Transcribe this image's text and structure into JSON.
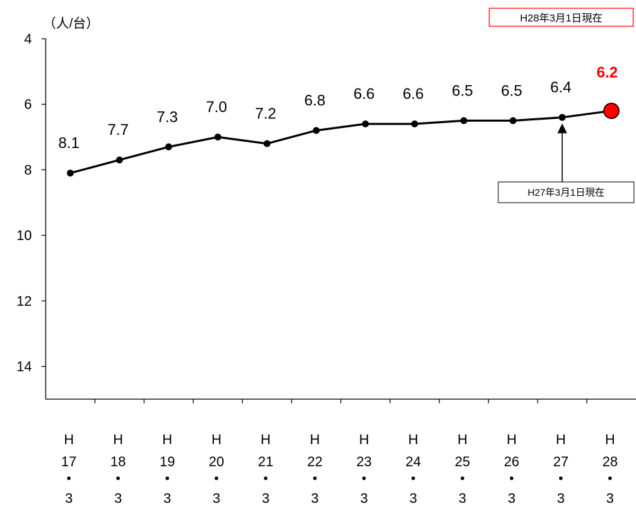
{
  "chart_data": {
    "type": "line",
    "unit_label": "（人/台）",
    "badge": "H28年3月1日現在",
    "callout": "H27年3月1日現在",
    "y_axis": {
      "min": 4,
      "max": 15,
      "inverted": true,
      "ticks": [
        4,
        6,
        8,
        10,
        12,
        14
      ]
    },
    "categories": [
      [
        "H",
        "17",
        "・",
        "3"
      ],
      [
        "H",
        "18",
        "・",
        "3"
      ],
      [
        "H",
        "19",
        "・",
        "3"
      ],
      [
        "H",
        "20",
        "・",
        "3"
      ],
      [
        "H",
        "21",
        "・",
        "3"
      ],
      [
        "H",
        "22",
        "・",
        "3"
      ],
      [
        "H",
        "23",
        "・",
        "3"
      ],
      [
        "H",
        "24",
        "・",
        "3"
      ],
      [
        "H",
        "25",
        "・",
        "3"
      ],
      [
        "H",
        "26",
        "・",
        "3"
      ],
      [
        "H",
        "27",
        "・",
        "3"
      ],
      [
        "H",
        "28",
        "・",
        "3"
      ]
    ],
    "values": [
      8.1,
      7.7,
      7.3,
      7.0,
      7.2,
      6.8,
      6.6,
      6.6,
      6.5,
      6.5,
      6.4,
      6.2
    ],
    "value_labels": [
      "8.1",
      "7.7",
      "7.3",
      "7.0",
      "7.2",
      "6.8",
      "6.6",
      "6.6",
      "6.5",
      "6.5",
      "6.4",
      "6.2"
    ],
    "highlight_index": 11,
    "callout_index": 10,
    "colors": {
      "line": "#000000",
      "highlight": "#ff0000",
      "badge_border": "#ff0000",
      "badge_text": "#ff0000"
    }
  }
}
